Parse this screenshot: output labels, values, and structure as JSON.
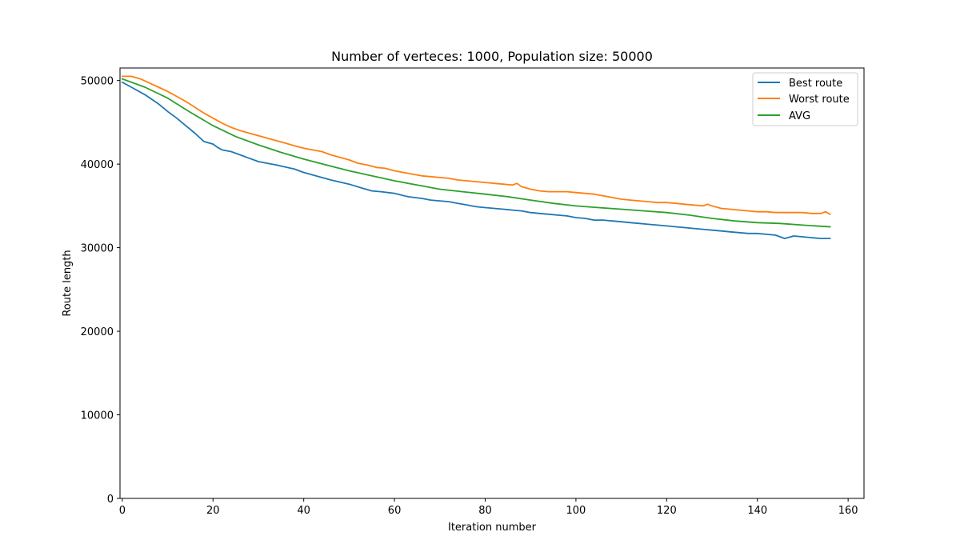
{
  "chart_data": {
    "type": "line",
    "title": "Number of verteces: 1000, Population size: 50000",
    "xlabel": "Iteration number",
    "ylabel": "Route length",
    "xlim": [
      0,
      156
    ],
    "ylim": [
      0,
      51500
    ],
    "xticks": [
      0,
      20,
      40,
      60,
      80,
      100,
      120,
      140,
      160
    ],
    "yticks": [
      0,
      10000,
      20000,
      30000,
      40000,
      50000
    ],
    "grid": false,
    "legend_position": "top-right",
    "series": [
      {
        "name": "Best route",
        "color": "#1f77b4",
        "x": [
          0,
          2,
          5,
          8,
          10,
          12,
          14,
          16,
          18,
          20,
          21,
          22,
          24,
          26,
          28,
          30,
          34,
          38,
          40,
          44,
          46,
          50,
          53,
          55,
          57,
          60,
          63,
          66,
          68,
          70,
          72,
          74,
          76,
          78,
          80,
          82,
          84,
          86,
          88,
          90,
          92,
          94,
          96,
          98,
          100,
          102,
          104,
          106,
          108,
          110,
          112,
          114,
          116,
          118,
          120,
          122,
          124,
          126,
          128,
          130,
          132,
          134,
          136,
          138,
          140,
          142,
          144,
          146,
          148,
          150,
          152,
          154,
          156
        ],
        "y": [
          49800,
          49200,
          48300,
          47200,
          46300,
          45500,
          44600,
          43700,
          42700,
          42400,
          42000,
          41700,
          41500,
          41100,
          40700,
          40300,
          39900,
          39400,
          39000,
          38400,
          38100,
          37600,
          37100,
          36800,
          36700,
          36500,
          36100,
          35900,
          35700,
          35600,
          35500,
          35300,
          35100,
          34900,
          34800,
          34700,
          34600,
          34500,
          34400,
          34200,
          34100,
          34000,
          33900,
          33800,
          33600,
          33500,
          33300,
          33300,
          33200,
          33100,
          33000,
          32900,
          32800,
          32700,
          32600,
          32500,
          32400,
          32300,
          32200,
          32100,
          32000,
          31900,
          31800,
          31700,
          31700,
          31600,
          31500,
          31100,
          31400,
          31300,
          31200,
          31100,
          31100
        ]
      },
      {
        "name": "Worst route",
        "color": "#ff7f0e",
        "x": [
          0,
          2,
          4,
          6,
          8,
          10,
          12,
          14,
          16,
          18,
          20,
          22,
          24,
          26,
          28,
          30,
          32,
          34,
          36,
          38,
          40,
          42,
          44,
          46,
          48,
          50,
          52,
          54,
          56,
          58,
          60,
          62,
          64,
          66,
          68,
          70,
          72,
          74,
          76,
          78,
          80,
          82,
          84,
          86,
          87,
          88,
          90,
          92,
          94,
          96,
          98,
          100,
          102,
          104,
          106,
          108,
          110,
          112,
          114,
          116,
          118,
          120,
          122,
          124,
          126,
          128,
          129,
          130,
          132,
          134,
          136,
          138,
          140,
          142,
          144,
          146,
          148,
          150,
          152,
          154,
          155,
          156
        ],
        "y": [
          50500,
          50500,
          50200,
          49700,
          49200,
          48700,
          48100,
          47500,
          46800,
          46100,
          45500,
          44900,
          44400,
          44000,
          43700,
          43400,
          43100,
          42800,
          42500,
          42200,
          41900,
          41700,
          41500,
          41100,
          40800,
          40500,
          40100,
          39900,
          39600,
          39500,
          39200,
          39000,
          38800,
          38600,
          38500,
          38400,
          38300,
          38100,
          38000,
          37900,
          37800,
          37700,
          37600,
          37500,
          37700,
          37300,
          37000,
          36800,
          36700,
          36700,
          36700,
          36600,
          36500,
          36400,
          36200,
          36000,
          35800,
          35700,
          35600,
          35500,
          35400,
          35400,
          35300,
          35200,
          35100,
          35000,
          35200,
          35000,
          34700,
          34600,
          34500,
          34400,
          34300,
          34300,
          34200,
          34200,
          34200,
          34200,
          34100,
          34100,
          34300,
          34000
        ]
      },
      {
        "name": "AVG",
        "color": "#2ca02c",
        "x": [
          0,
          5,
          10,
          15,
          20,
          25,
          30,
          35,
          40,
          45,
          50,
          55,
          60,
          65,
          70,
          75,
          80,
          85,
          90,
          95,
          100,
          105,
          110,
          115,
          120,
          125,
          130,
          135,
          140,
          145,
          150,
          156
        ],
        "y": [
          50200,
          49200,
          47900,
          46200,
          44600,
          43300,
          42300,
          41400,
          40600,
          39900,
          39200,
          38600,
          38000,
          37500,
          37000,
          36700,
          36400,
          36100,
          35700,
          35300,
          35000,
          34800,
          34600,
          34400,
          34200,
          33900,
          33500,
          33200,
          33000,
          32900,
          32700,
          32500
        ]
      }
    ]
  }
}
